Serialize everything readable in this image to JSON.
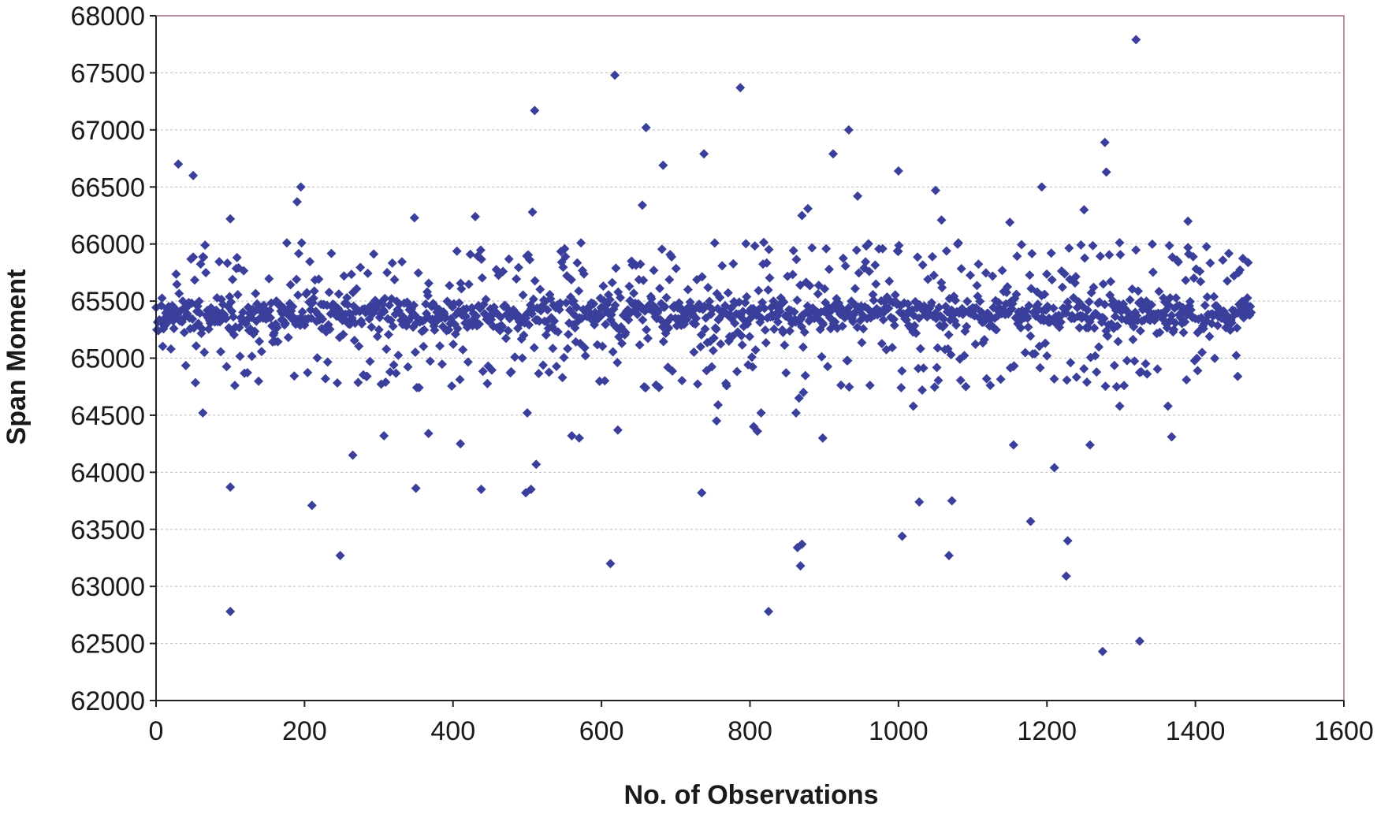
{
  "chart_data": {
    "type": "scatter",
    "title": "",
    "xlabel": "No. of Observations",
    "ylabel": "Span Moment",
    "xlim": [
      0,
      1600
    ],
    "ylim": [
      62000,
      68000
    ],
    "xticks": [
      "0",
      "200",
      "400",
      "600",
      "800",
      "1000",
      "1200",
      "1400",
      "1600"
    ],
    "yticks": [
      "62000",
      "62500",
      "63000",
      "63500",
      "64000",
      "64500",
      "65000",
      "65500",
      "66000",
      "66500",
      "67000",
      "67500",
      "68000"
    ],
    "grid": "horizontal",
    "legend": "none",
    "marker": "diamond",
    "colors": {
      "marker": "#3a3f9b",
      "plot_border": "#a06b8c",
      "gridline": "#bcbcbc",
      "axis": "#222222"
    },
    "outliers": [
      {
        "x": 30,
        "y": 66700
      },
      {
        "x": 50,
        "y": 66600
      },
      {
        "x": 195,
        "y": 66500
      },
      {
        "x": 190,
        "y": 66370
      },
      {
        "x": 100,
        "y": 66220
      },
      {
        "x": 510,
        "y": 67170
      },
      {
        "x": 618,
        "y": 67480
      },
      {
        "x": 660,
        "y": 67020
      },
      {
        "x": 683,
        "y": 66690
      },
      {
        "x": 738,
        "y": 66790
      },
      {
        "x": 787,
        "y": 67370
      },
      {
        "x": 933,
        "y": 67000
      },
      {
        "x": 912,
        "y": 66790
      },
      {
        "x": 945,
        "y": 66420
      },
      {
        "x": 1000,
        "y": 66640
      },
      {
        "x": 1050,
        "y": 66470
      },
      {
        "x": 1193,
        "y": 66500
      },
      {
        "x": 1278,
        "y": 66890
      },
      {
        "x": 1280,
        "y": 66630
      },
      {
        "x": 1320,
        "y": 67790
      },
      {
        "x": 1250,
        "y": 66300
      },
      {
        "x": 655,
        "y": 66340
      },
      {
        "x": 507,
        "y": 66280
      },
      {
        "x": 348,
        "y": 66230
      },
      {
        "x": 430,
        "y": 66240
      },
      {
        "x": 870,
        "y": 66250
      },
      {
        "x": 878,
        "y": 66310
      },
      {
        "x": 1150,
        "y": 66190
      },
      {
        "x": 1390,
        "y": 66200
      },
      {
        "x": 1058,
        "y": 66210
      },
      {
        "x": 100,
        "y": 63870
      },
      {
        "x": 100,
        "y": 62780
      },
      {
        "x": 210,
        "y": 63710
      },
      {
        "x": 248,
        "y": 63270
      },
      {
        "x": 265,
        "y": 64150
      },
      {
        "x": 63,
        "y": 64520
      },
      {
        "x": 307,
        "y": 64320
      },
      {
        "x": 350,
        "y": 63860
      },
      {
        "x": 367,
        "y": 64340
      },
      {
        "x": 410,
        "y": 64250
      },
      {
        "x": 438,
        "y": 63850
      },
      {
        "x": 498,
        "y": 63820
      },
      {
        "x": 505,
        "y": 63850
      },
      {
        "x": 500,
        "y": 64520
      },
      {
        "x": 512,
        "y": 64070
      },
      {
        "x": 560,
        "y": 64320
      },
      {
        "x": 570,
        "y": 64300
      },
      {
        "x": 612,
        "y": 63200
      },
      {
        "x": 622,
        "y": 64370
      },
      {
        "x": 735,
        "y": 63820
      },
      {
        "x": 757,
        "y": 64590
      },
      {
        "x": 755,
        "y": 64450
      },
      {
        "x": 805,
        "y": 64400
      },
      {
        "x": 810,
        "y": 64360
      },
      {
        "x": 815,
        "y": 64520
      },
      {
        "x": 825,
        "y": 62780
      },
      {
        "x": 862,
        "y": 64520
      },
      {
        "x": 864,
        "y": 63340
      },
      {
        "x": 870,
        "y": 63370
      },
      {
        "x": 868,
        "y": 63180
      },
      {
        "x": 866,
        "y": 64650
      },
      {
        "x": 872,
        "y": 64700
      },
      {
        "x": 898,
        "y": 64300
      },
      {
        "x": 1005,
        "y": 63440
      },
      {
        "x": 1020,
        "y": 64580
      },
      {
        "x": 1028,
        "y": 63740
      },
      {
        "x": 1032,
        "y": 64720
      },
      {
        "x": 1068,
        "y": 63270
      },
      {
        "x": 1072,
        "y": 63750
      },
      {
        "x": 1155,
        "y": 64240
      },
      {
        "x": 1178,
        "y": 63570
      },
      {
        "x": 1210,
        "y": 64040
      },
      {
        "x": 1228,
        "y": 63400
      },
      {
        "x": 1226,
        "y": 63090
      },
      {
        "x": 1258,
        "y": 64240
      },
      {
        "x": 1275,
        "y": 62430
      },
      {
        "x": 1298,
        "y": 64580
      },
      {
        "x": 1325,
        "y": 62520
      },
      {
        "x": 1327,
        "y": 64880
      },
      {
        "x": 1363,
        "y": 64580
      },
      {
        "x": 1368,
        "y": 64310
      },
      {
        "x": 1457,
        "y": 64840
      },
      {
        "x": 1403,
        "y": 64890
      },
      {
        "x": 1200,
        "y": 65020
      },
      {
        "x": 1265,
        "y": 65020
      }
    ],
    "band": {
      "x_range": [
        0,
        1475
      ],
      "y_center": 65380,
      "dense_spread": 160,
      "wide_spread": 640,
      "approx_point_count": 1475
    }
  }
}
